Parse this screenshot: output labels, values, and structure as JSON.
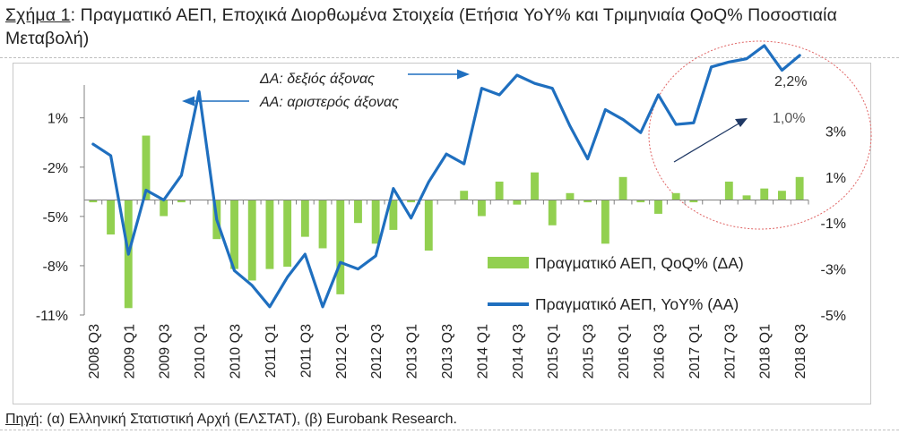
{
  "title": {
    "label": "Σχήμα 1",
    "sep": ":",
    "text": " Πραγματικό ΑΕΠ, Εποχικά Διορθωμένα Στοιχεία (Ετήσια YoY% και Τριμηνιαία QoQ% Ποσοστιαία Μεταβολή)"
  },
  "source": {
    "label": "Πηγή",
    "text": ": (α) Ελληνική Στατιστική Αρχή (ΕΛΣΤΑΤ), (β) Eurobank Research."
  },
  "colors": {
    "bar": "#92d050",
    "line": "#1f6fbf",
    "axis": "#808080",
    "arrow": "#1f6fbf",
    "ellipse": "#e06666",
    "dark_arrow": "#1f3864"
  },
  "chart_data": {
    "type": "bar+line",
    "x": [
      "2008 Q3",
      "2008 Q4",
      "2009 Q1",
      "2009 Q2",
      "2009 Q3",
      "2009 Q4",
      "2010 Q1",
      "2010 Q2",
      "2010 Q3",
      "2010 Q4",
      "2011 Q1",
      "2011 Q2",
      "2011 Q3",
      "2011 Q4",
      "2012 Q1",
      "2012 Q2",
      "2012 Q3",
      "2012 Q4",
      "2013 Q1",
      "2013 Q2",
      "2013 Q3",
      "2013 Q4",
      "2014 Q1",
      "2014 Q2",
      "2014 Q3",
      "2014 Q4",
      "2015 Q1",
      "2015 Q2",
      "2015 Q3",
      "2015 Q4",
      "2016 Q1",
      "2016 Q2",
      "2016 Q3",
      "2016 Q4",
      "2017 Q1",
      "2017 Q2",
      "2017 Q3",
      "2017 Q4",
      "2018 Q1",
      "2018 Q2",
      "2018 Q3"
    ],
    "tick_labels": [
      "2008 Q3",
      "2009 Q1",
      "2009 Q3",
      "2010 Q1",
      "2010 Q3",
      "2011 Q1",
      "2011 Q3",
      "2012 Q1",
      "2012 Q3",
      "2013 Q1",
      "2013 Q3",
      "2014 Q1",
      "2014 Q3",
      "2015 Q1",
      "2015 Q3",
      "2016 Q1",
      "2016 Q3",
      "2017 Q1",
      "2017 Q3",
      "2018 Q1",
      "2018 Q3"
    ],
    "series": [
      {
        "name": "Πραγματικό ΑΕΠ, QoQ% (ΔΑ)",
        "type": "bar",
        "axis": "right",
        "values": [
          -0.1,
          -1.5,
          -4.7,
          2.8,
          -0.7,
          -0.1,
          0.0,
          -1.7,
          -3.0,
          -3.5,
          -3.0,
          -2.9,
          -1.6,
          -2.1,
          -4.1,
          -1.0,
          -1.9,
          -1.3,
          -0.1,
          -2.2,
          0.0,
          0.4,
          -0.7,
          0.8,
          -0.2,
          1.2,
          -1.1,
          0.3,
          -0.1,
          -1.9,
          1.0,
          -0.1,
          -0.6,
          0.3,
          -0.1,
          0.0,
          0.8,
          0.2,
          0.5,
          0.4,
          1.0
        ]
      },
      {
        "name": "Πραγματικό ΑΕΠ, YoY% (ΑΑ)",
        "type": "line",
        "axis": "left",
        "values": [
          -0.6,
          -1.3,
          -7.3,
          -3.4,
          -4.0,
          -2.5,
          2.6,
          -5.2,
          -8.3,
          -9.2,
          -10.5,
          -8.7,
          -7.3,
          -10.5,
          -7.8,
          -8.2,
          -7.4,
          -3.3,
          -5.1,
          -2.9,
          -1.2,
          -1.8,
          2.8,
          2.4,
          3.6,
          3.1,
          2.8,
          0.5,
          -1.5,
          1.5,
          0.9,
          0.1,
          2.4,
          0.6,
          0.7,
          4.1,
          4.4,
          4.6,
          5.4,
          3.9,
          4.8
        ]
      }
    ],
    "left_axis": {
      "ylim": [
        -11,
        3
      ],
      "ticks": [
        1,
        -2,
        -5,
        -8,
        -11
      ],
      "tick_labels": [
        "1%",
        "-2%",
        "-5%",
        "-8%",
        "-11%"
      ]
    },
    "right_axis": {
      "ylim": [
        -5,
        5
      ],
      "ticks": [
        3,
        1,
        -1,
        -3,
        -5
      ],
      "tick_labels": [
        "3%",
        "1%",
        "-1%",
        "-3%",
        "-5%"
      ]
    },
    "legend": {
      "position": "bottom-right",
      "entries": [
        "Πραγματικό ΑΕΠ, QoQ% (ΔΑ)",
        "Πραγματικό ΑΕΠ, YoY% (ΑΑ)"
      ]
    },
    "annotations": [
      {
        "text": "ΔΑ: δεξιός άξονας"
      },
      {
        "text": "ΑΑ: αριστερός άξονας"
      },
      {
        "text": "2,2%"
      },
      {
        "text": "1,0%"
      }
    ],
    "grid": false
  }
}
